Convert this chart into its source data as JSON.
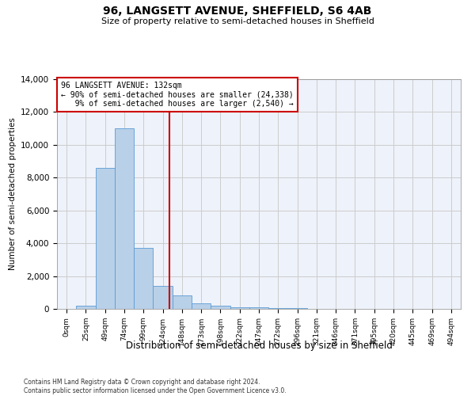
{
  "title": "96, LANGSETT AVENUE, SHEFFIELD, S6 4AB",
  "subtitle": "Size of property relative to semi-detached houses in Sheffield",
  "xlabel": "Distribution of semi-detached houses by size in Sheffield",
  "ylabel": "Number of semi-detached properties",
  "property_label": "96 LANGSETT AVENUE: 132sqm",
  "pct_smaller": 90,
  "pct_larger": 9,
  "count_smaller": 24338,
  "count_larger": 2540,
  "bin_labels": [
    "0sqm",
    "25sqm",
    "49sqm",
    "74sqm",
    "99sqm",
    "124sqm",
    "148sqm",
    "173sqm",
    "198sqm",
    "222sqm",
    "247sqm",
    "272sqm",
    "296sqm",
    "321sqm",
    "346sqm",
    "371sqm",
    "395sqm",
    "420sqm",
    "445sqm",
    "469sqm",
    "494sqm"
  ],
  "bar_heights": [
    0,
    200,
    8600,
    11000,
    3700,
    1400,
    800,
    350,
    180,
    100,
    80,
    50,
    30,
    20,
    10,
    5,
    5,
    3,
    2,
    1,
    1
  ],
  "bar_color": "#b8d0e8",
  "bar_edge_color": "#5b9bd5",
  "vline_color": "#cc0000",
  "box_color": "#cc0000",
  "vline_index": 5.333,
  "ylim": [
    0,
    14000
  ],
  "yticks": [
    0,
    2000,
    4000,
    6000,
    8000,
    10000,
    12000,
    14000
  ],
  "grid_color": "#cccccc",
  "bg_color": "#eef2fa",
  "footer_line1": "Contains HM Land Registry data © Crown copyright and database right 2024.",
  "footer_line2": "Contains public sector information licensed under the Open Government Licence v3.0."
}
